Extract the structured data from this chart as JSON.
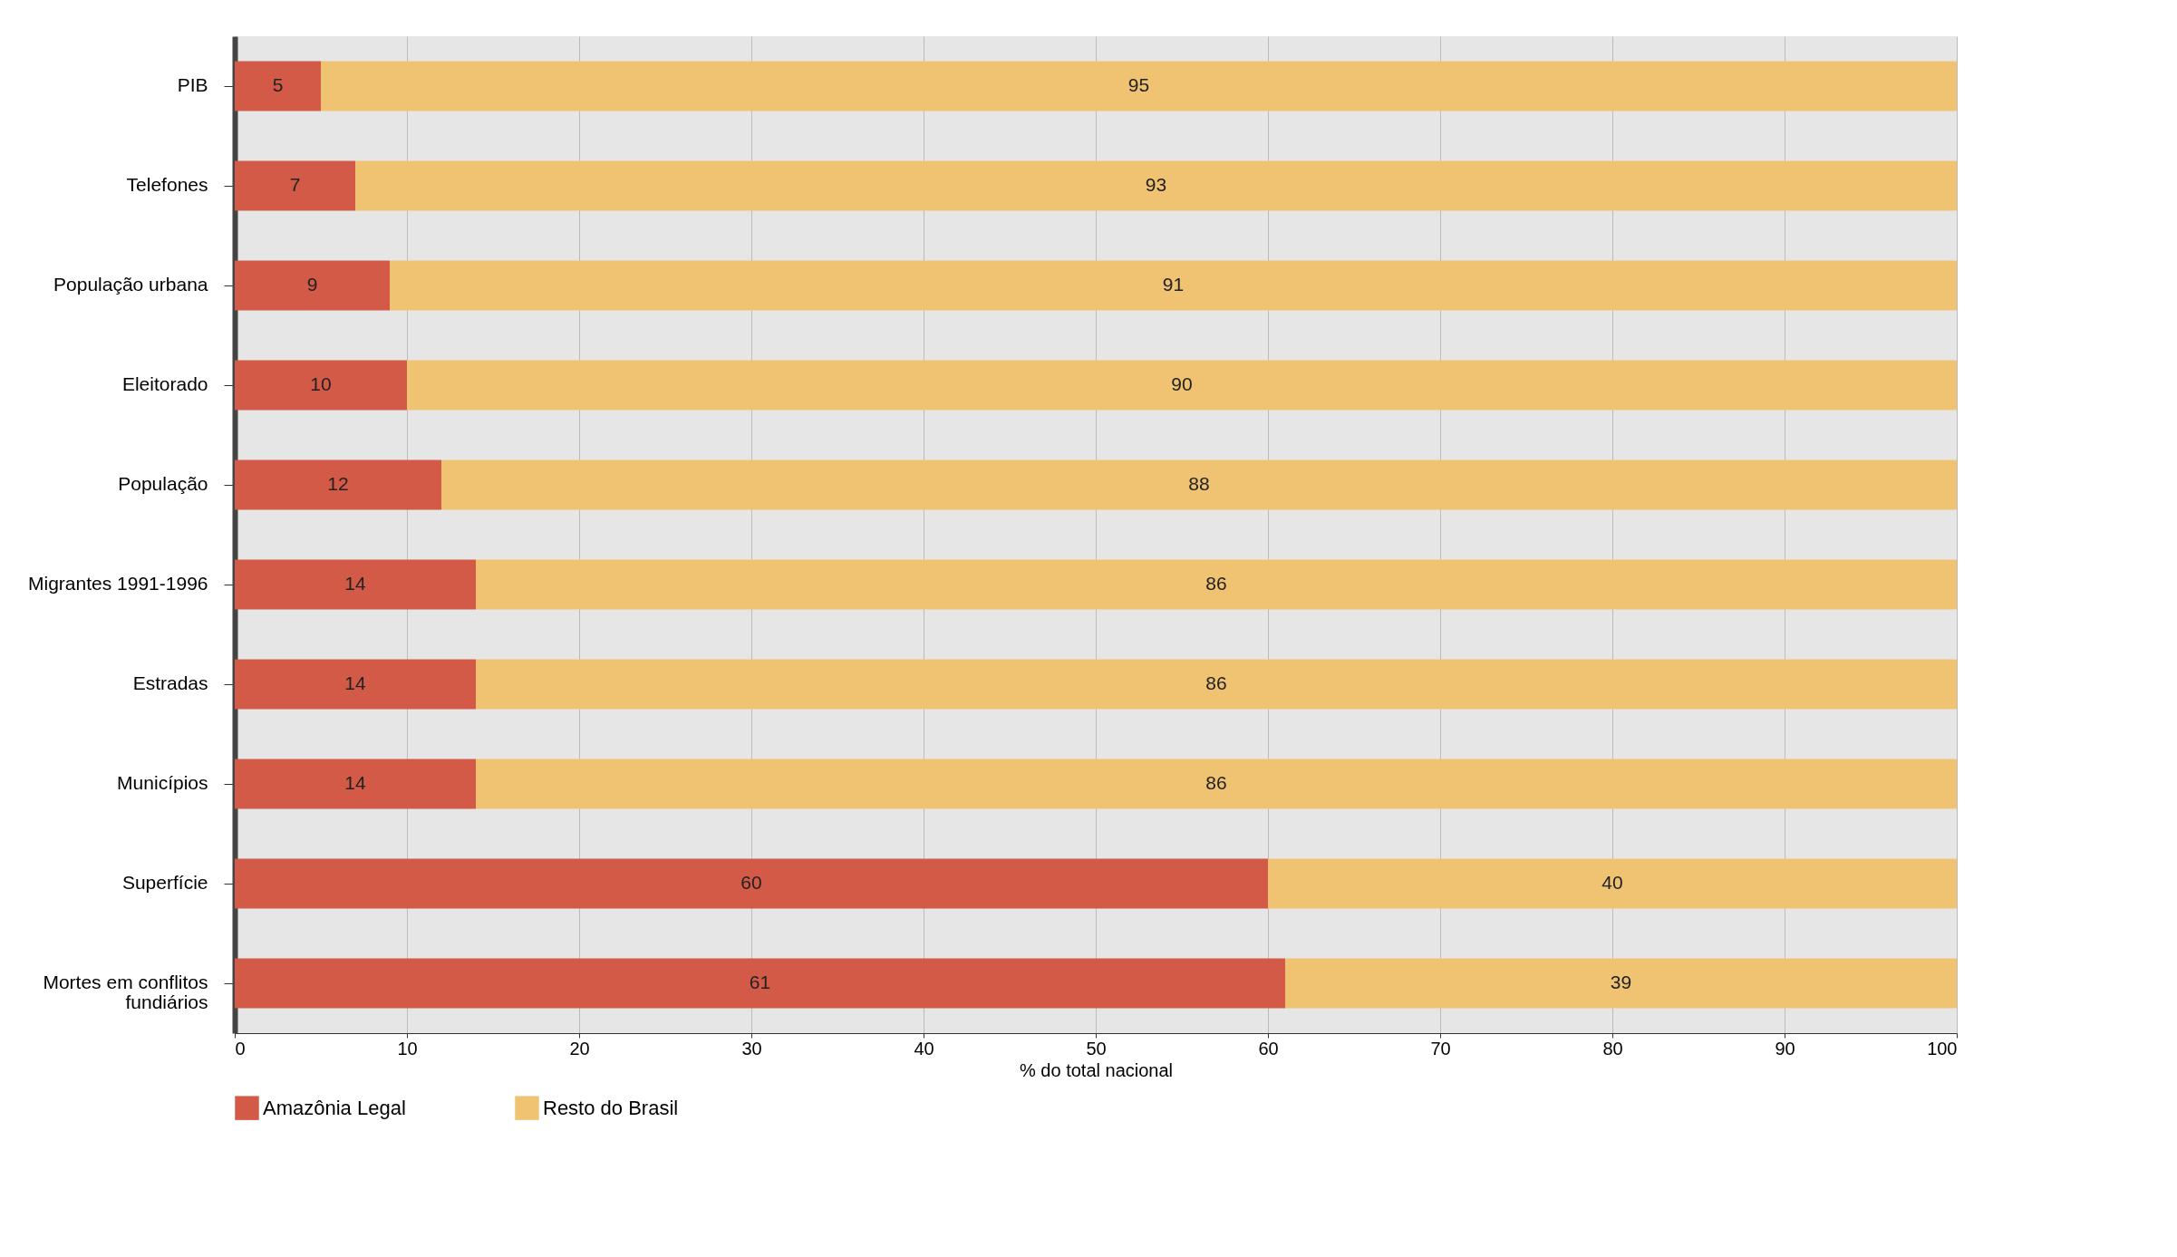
{
  "chart_data": {
    "type": "bar",
    "orientation": "horizontal",
    "stacked": true,
    "data_labels": true,
    "xlabel": "% do total nacional",
    "categories": [
      "PIB",
      "Telefones",
      "População urbana",
      "Eleitorado",
      "População",
      "Migrantes 1991-1996",
      "Estradas",
      "Municípios",
      "Superfície",
      "Mortes em conflitos fundiários"
    ],
    "series": [
      {
        "name": "Amazônia Legal",
        "color": "#d45a48",
        "values": [
          5,
          7,
          9,
          10,
          12,
          14,
          14,
          14,
          60,
          61
        ]
      },
      {
        "name": "Resto do Brasil",
        "color": "#f0c373",
        "values": [
          95,
          93,
          91,
          90,
          88,
          86,
          86,
          86,
          40,
          39
        ]
      }
    ],
    "xlim": [
      0,
      100
    ],
    "xticks": [
      0,
      10,
      20,
      30,
      40,
      50,
      60,
      70,
      80,
      90,
      100
    ],
    "grid": "x",
    "legend": "bottom"
  }
}
